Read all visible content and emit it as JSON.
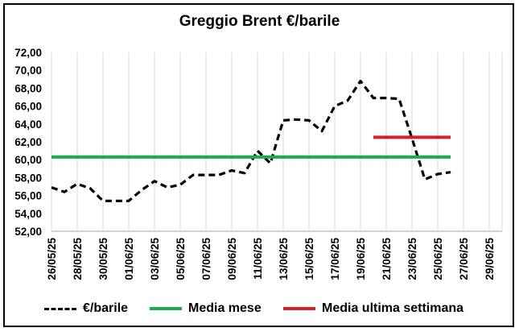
{
  "chart_data": {
    "type": "line",
    "title": "Greggio Brent €/barile",
    "xlabel": "",
    "ylabel": "",
    "ylim": [
      52,
      72
    ],
    "y_ticks": [
      "52,00",
      "54,00",
      "56,00",
      "58,00",
      "60,00",
      "62,00",
      "64,00",
      "66,00",
      "68,00",
      "70,00",
      "72,00"
    ],
    "x_tick_labels": [
      "26/05/25",
      "28/05/25",
      "30/05/25",
      "01/06/25",
      "03/06/25",
      "05/06/25",
      "07/06/25",
      "09/06/25",
      "11/06/25",
      "13/06/25",
      "15/06/25",
      "17/06/25",
      "19/06/25",
      "21/06/25",
      "23/06/25",
      "25/06/25",
      "27/06/25",
      "29/06/25"
    ],
    "x_range": [
      "26/05/25",
      "30/06/25"
    ],
    "grid": "vertical",
    "legend_position": "bottom",
    "series": [
      {
        "name": "€/barile",
        "color": "#000000",
        "style": "dashed",
        "x": [
          "26/05/25",
          "27/05/25",
          "28/05/25",
          "29/05/25",
          "30/05/25",
          "31/05/25",
          "01/06/25",
          "02/06/25",
          "03/06/25",
          "04/06/25",
          "05/06/25",
          "06/06/25",
          "07/06/25",
          "08/06/25",
          "09/06/25",
          "10/06/25",
          "11/06/25",
          "12/06/25",
          "13/06/25",
          "14/06/25",
          "15/06/25",
          "16/06/25",
          "17/06/25",
          "18/06/25",
          "19/06/25",
          "20/06/25",
          "21/06/25",
          "22/06/25",
          "23/06/25",
          "24/06/25",
          "25/06/25",
          "26/06/25"
        ],
        "values": [
          56.9,
          56.4,
          57.3,
          56.8,
          55.4,
          55.4,
          55.4,
          56.6,
          57.6,
          56.9,
          57.2,
          58.3,
          58.3,
          58.3,
          58.8,
          58.5,
          61.0,
          59.6,
          64.4,
          64.5,
          64.4,
          63.2,
          66.0,
          66.6,
          68.8,
          66.9,
          66.9,
          66.8,
          62.4,
          57.8,
          58.4,
          58.6
        ]
      },
      {
        "name": "Media mese",
        "color": "#1aab4b",
        "style": "solid",
        "x": [
          "26/05/25",
          "26/06/25"
        ],
        "values": [
          60.3,
          60.3
        ]
      },
      {
        "name": "Media ultima settimana",
        "color": "#d42121",
        "style": "solid",
        "x": [
          "20/06/25",
          "26/06/25"
        ],
        "values": [
          62.5,
          62.5
        ]
      }
    ]
  }
}
